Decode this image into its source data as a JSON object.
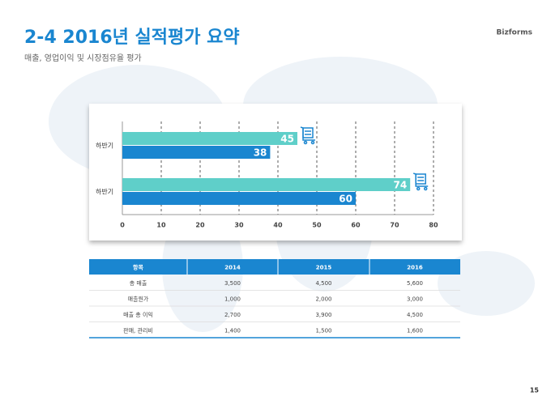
{
  "header": {
    "title": "2-4 2016년 실적평가 요약",
    "subtitle": "매출, 영업이익 및 시장점유율 평가",
    "brand": "Bizforms"
  },
  "chart_data": {
    "type": "hbar",
    "categories": [
      "하반기",
      "하반기"
    ],
    "series": [
      {
        "color": "#5fcfc9",
        "values": [
          45,
          74
        ]
      },
      {
        "color": "#1a86d0",
        "values": [
          38,
          60
        ]
      }
    ],
    "xlim": [
      0,
      80
    ],
    "xticks": [
      0,
      10,
      20,
      30,
      40,
      50,
      60,
      70,
      80
    ],
    "grid": true
  },
  "table": {
    "columns": [
      "항목",
      "2014",
      "2015",
      "2016"
    ],
    "rows": [
      [
        "총 매출",
        "3,500",
        "4,500",
        "5,600"
      ],
      [
        "매출원가",
        "1,000",
        "2,000",
        "3,000"
      ],
      [
        "매출 총 이익",
        "2,700",
        "3,900",
        "4,500"
      ],
      [
        "판매, 관리비",
        "1,400",
        "1,500",
        "1,600"
      ]
    ]
  },
  "page_number": "15"
}
